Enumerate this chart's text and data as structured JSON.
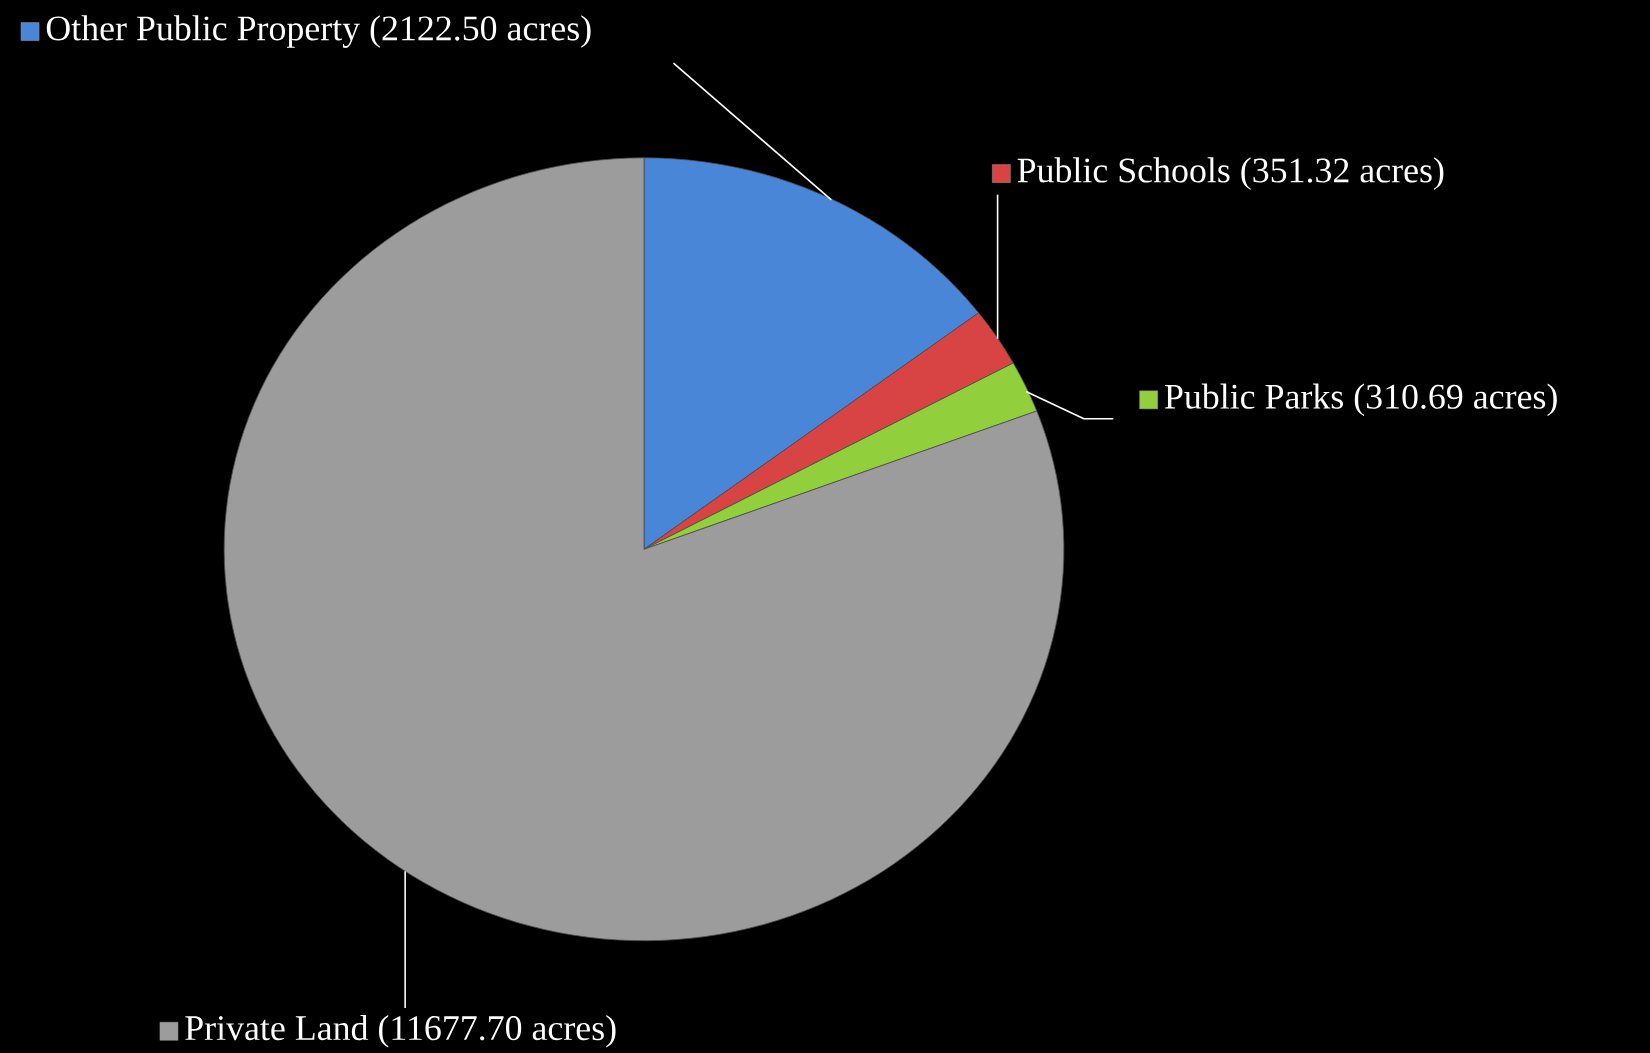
{
  "chart_data": {
    "type": "pie",
    "categories": [
      "Other Public Property",
      "Public Schools",
      "Public Parks",
      "Private Land"
    ],
    "values": [
      2122.5,
      351.32,
      310.69,
      11677.7
    ],
    "value_labels": [
      "(2122.50 acres)",
      "(351.32 acres)",
      "(310.69 acres)",
      "(11677.70 acres)"
    ],
    "colors": [
      "#4a86d8",
      "#d84444",
      "#92cf3c",
      "#9c9c9c"
    ],
    "legend": "right"
  }
}
